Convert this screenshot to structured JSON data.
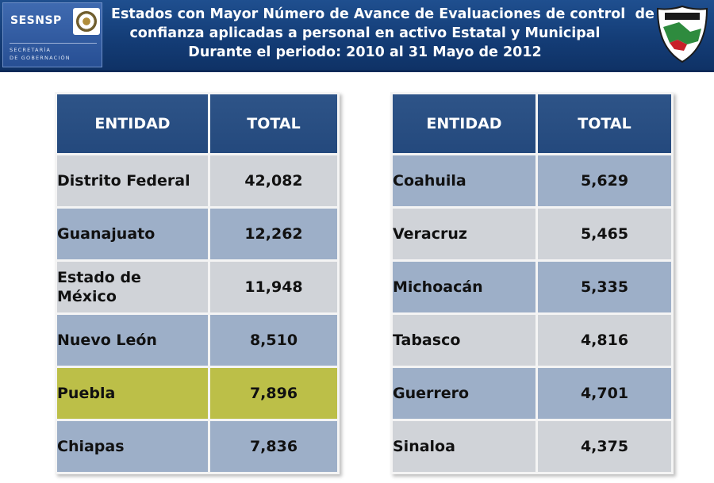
{
  "header": {
    "logo_name": "SESNSP",
    "logo_sub_1": "SECRETARÍA",
    "logo_sub_2": "DE GOBERNACIÓN",
    "title_line_1": "Estados con Mayor Número de Avance de Evaluaciones de control  de",
    "title_line_2": "confianza aplicadas a personal en activo Estatal y Municipal",
    "title_line_3": "Durante el periodo: 2010 al 31 Mayo de 2012"
  },
  "colors": {
    "header_blue": "#24497d",
    "row_blue": "#9dafc8",
    "row_gray": "#d0d3d8",
    "highlight": "#bcbf48"
  },
  "left_table": {
    "headers": [
      "ENTIDAD",
      "TOTAL"
    ],
    "rows": [
      {
        "entidad": "Distrito Federal",
        "total": "42,082"
      },
      {
        "entidad": "Guanajuato",
        "total": "12,262"
      },
      {
        "entidad": "Estado de México",
        "total": "11,948"
      },
      {
        "entidad": "Nuevo León",
        "total": "8,510"
      },
      {
        "entidad": "Puebla",
        "total": "7,896"
      },
      {
        "entidad": "Chiapas",
        "total": "7,836"
      }
    ]
  },
  "right_table": {
    "headers": [
      "ENTIDAD",
      "TOTAL"
    ],
    "rows": [
      {
        "entidad": "Coahuila",
        "total": "5,629"
      },
      {
        "entidad": "Veracruz",
        "total": "5,465"
      },
      {
        "entidad": "Michoacán",
        "total": "5,335"
      },
      {
        "entidad": "Tabasco",
        "total": "4,816"
      },
      {
        "entidad": "Guerrero",
        "total": "4,701"
      },
      {
        "entidad": "Sinaloa",
        "total": "4,375"
      }
    ]
  }
}
